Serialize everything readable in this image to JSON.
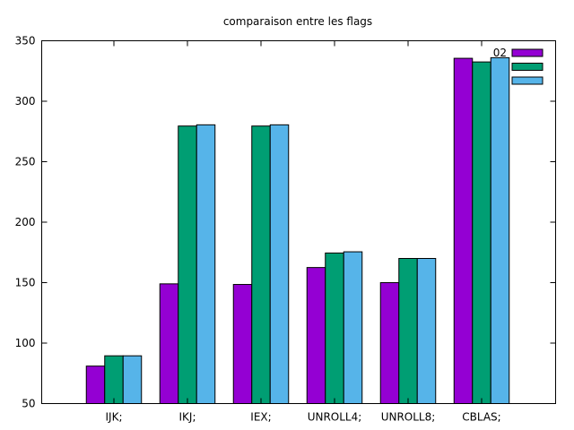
{
  "chart_data": {
    "type": "bar",
    "title": "comparaison entre les flags",
    "xlabel": "",
    "ylabel": "",
    "ylim": [
      50,
      350
    ],
    "yticks": [
      50,
      100,
      150,
      200,
      250,
      300,
      350
    ],
    "categories": [
      "IJK;",
      "IKJ;",
      "IEX;",
      "UNROLL4;",
      "UNROLL8;",
      "CBLAS;"
    ],
    "series": [
      {
        "name": "02",
        "color": "#9400d3",
        "values": [
          81,
          149,
          148.5,
          162.5,
          150,
          335.5
        ]
      },
      {
        "name": "",
        "color": "#009e73",
        "values": [
          89.5,
          279.5,
          279.5,
          174.5,
          170,
          332.5
        ]
      },
      {
        "name": "",
        "color": "#56b4e9",
        "values": [
          89.5,
          280.5,
          280.5,
          175.5,
          170,
          336
        ]
      }
    ],
    "legend_position": "top-right",
    "grid": false
  }
}
